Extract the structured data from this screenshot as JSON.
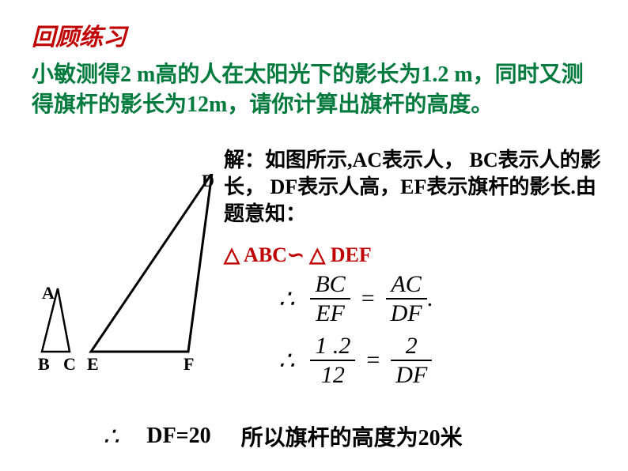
{
  "colors": {
    "title_color": "#c00000",
    "problem_color": "#007a3d",
    "similar_color": "#c00000",
    "text_black": "#000000"
  },
  "title": "回顾练习",
  "problem": "小敏测得2 m高的人在太阳光下的影长为1.2 m，同时又测得旗杆的影长为12m，请你计算出旗杆的高度。",
  "solution_label": "解：如图所示,AC表示人， BC表示人的影长， DF表示人高，EF表示旗杆的影长.由题意知：",
  "similar_statement": "△ ABC∽ △ DEF",
  "diagram": {
    "labels": {
      "A": "A",
      "B": "B",
      "C": "C",
      "D": "D",
      "E": "E",
      "F": "F"
    },
    "small_triangle": {
      "a": [
        33,
        145
      ],
      "b": [
        13,
        225
      ],
      "c": [
        48,
        225
      ],
      "stroke_width": 2.5
    },
    "large_triangle": {
      "d": [
        228,
        -1
      ],
      "e": [
        75,
        225
      ],
      "f": [
        198,
        225
      ],
      "stroke_width": 3
    }
  },
  "equations": {
    "eq1": {
      "lhs_num": "BC",
      "lhs_den": "EF",
      "rhs_num": "AC",
      "rhs_den": "DF",
      "trailing": "."
    },
    "eq2": {
      "lhs_num": "1 .2",
      "lhs_den": "12",
      "rhs_num": "2",
      "rhs_den": "DF"
    }
  },
  "conclusion": {
    "df_result": "DF=20",
    "final_text": "所以旗杆的高度为20米"
  },
  "therefore_symbol": "∴"
}
